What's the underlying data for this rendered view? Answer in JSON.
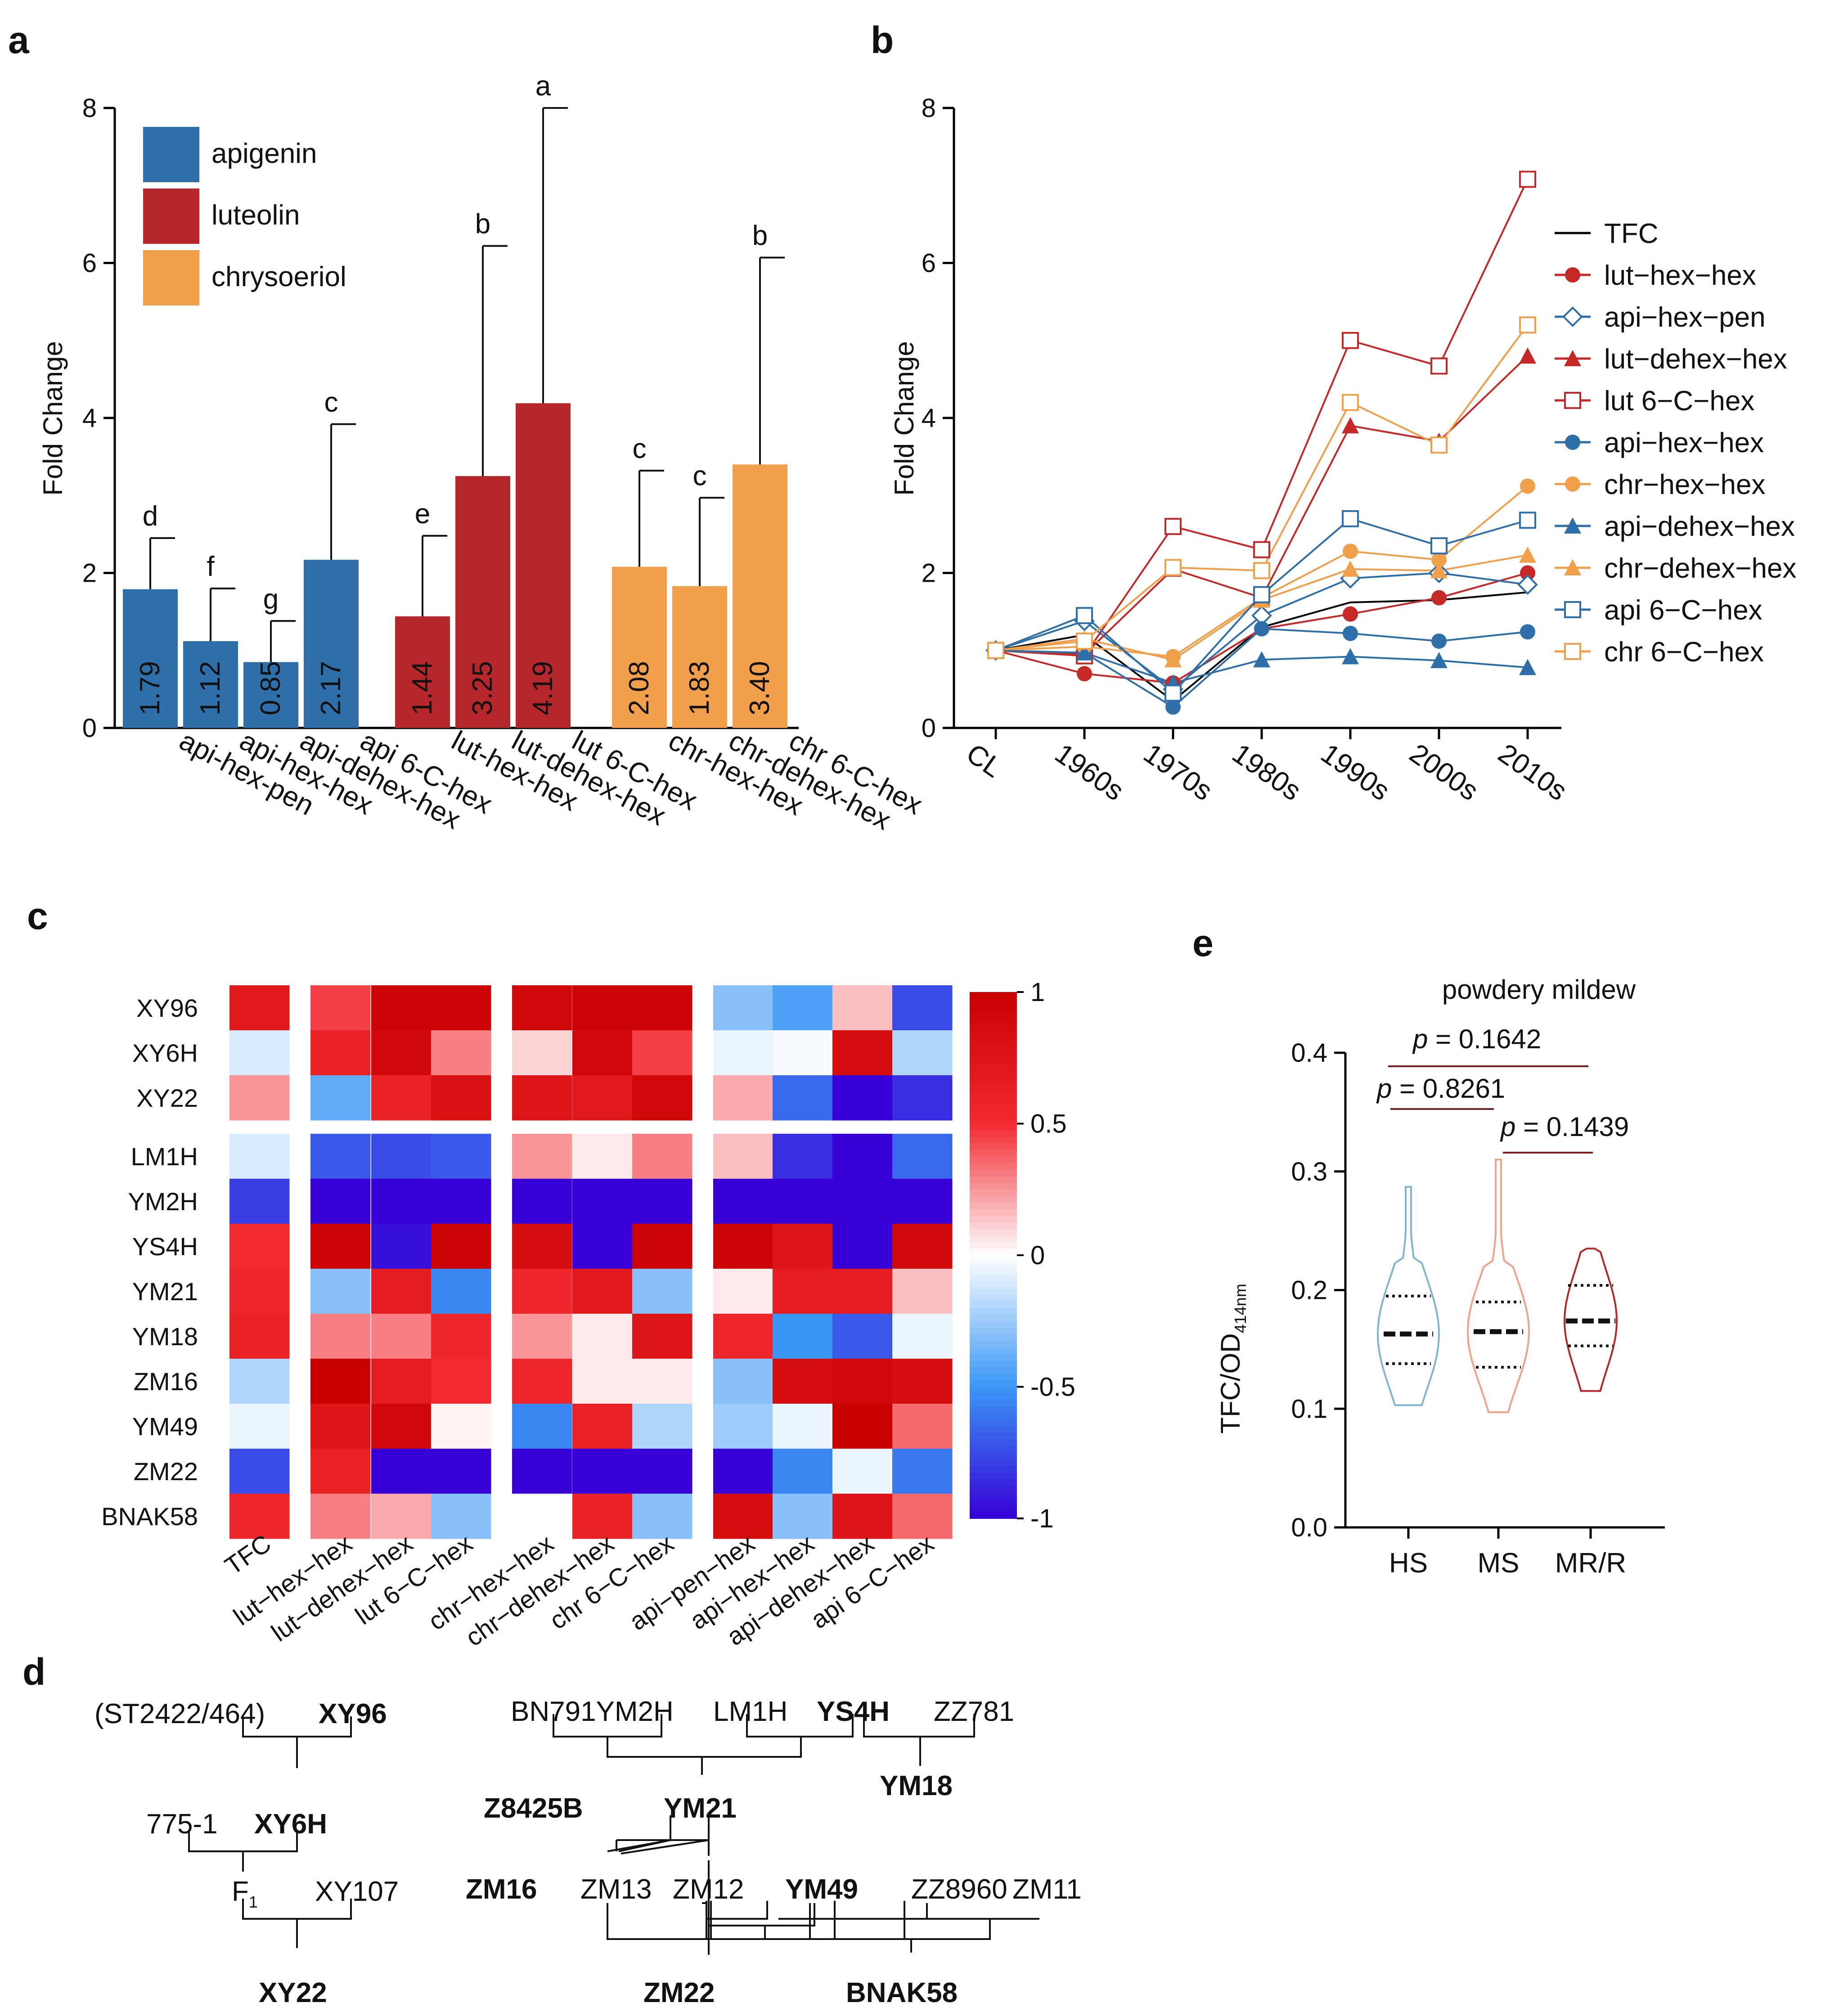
{
  "panel_labels": [
    "a",
    "b",
    "c",
    "d",
    "e"
  ],
  "chart_data": [
    {
      "id": "a",
      "type": "bar",
      "ylabel": "Fold Change",
      "ylim": [
        0,
        8
      ],
      "yticks": [
        "0",
        "2",
        "4",
        "6",
        "8"
      ],
      "legend": [
        {
          "name": "apigenin",
          "color": "#2E6FA9"
        },
        {
          "name": "luteolin",
          "color": "#B5272B"
        },
        {
          "name": "chrysoeriol",
          "color": "#F0A04A"
        }
      ],
      "bars": [
        {
          "category": "api-hex-pen",
          "value": 1.79,
          "label": "1.79",
          "err": 2.45,
          "sig": "d",
          "group": 0
        },
        {
          "category": "api-hex-hex",
          "value": 1.12,
          "label": "1.12",
          "err": 1.8,
          "sig": "f",
          "group": 0
        },
        {
          "category": "api-dehex-hex",
          "value": 0.85,
          "label": "0.85",
          "err": 1.38,
          "sig": "g",
          "group": 0
        },
        {
          "category": "api 6-C-hex",
          "value": 2.17,
          "label": "2.17",
          "err": 3.92,
          "sig": "c",
          "group": 0
        },
        {
          "category": "lut-hex-hex",
          "value": 1.44,
          "label": "1.44",
          "err": 2.48,
          "sig": "e",
          "group": 1
        },
        {
          "category": "lut-dehex-hex",
          "value": 3.25,
          "label": "3.25",
          "err": 6.22,
          "sig": "b",
          "group": 1
        },
        {
          "category": "lut 6-C-hex",
          "value": 4.19,
          "label": "4.19",
          "err": 8.0,
          "sig": "a",
          "group": 1
        },
        {
          "category": "chr-hex-hex",
          "value": 2.08,
          "label": "2.08",
          "err": 3.32,
          "sig": "c",
          "group": 2
        },
        {
          "category": "chr-dehex-hex",
          "value": 1.83,
          "label": "1.83",
          "err": 2.97,
          "sig": "c",
          "group": 2
        },
        {
          "category": "chr 6-C-hex",
          "value": 3.4,
          "label": "3.40",
          "err": 6.07,
          "sig": "b",
          "group": 2
        }
      ]
    },
    {
      "id": "b",
      "type": "line",
      "ylabel": "Fold Change",
      "ylim": [
        0,
        8
      ],
      "yticks": [
        "0",
        "2",
        "4",
        "6",
        "8"
      ],
      "categories": [
        "CL",
        "1960s",
        "1970s",
        "1980s",
        "1990s",
        "2000s",
        "2010s"
      ],
      "series": [
        {
          "name": "TFC",
          "color": "#000000",
          "marker": "none",
          "values": [
            1.0,
            1.2,
            0.35,
            1.3,
            1.62,
            1.65,
            1.75
          ]
        },
        {
          "name": "lut−hex−hex",
          "color": "#C62828",
          "marker": "circle",
          "values": [
            1.0,
            0.7,
            0.58,
            1.28,
            1.47,
            1.68,
            2.0
          ]
        },
        {
          "name": "api−hex−pen",
          "color": "#2E6FA9",
          "marker": "diamond-open",
          "values": [
            1.0,
            1.38,
            0.5,
            1.45,
            1.93,
            2.0,
            1.85
          ]
        },
        {
          "name": "lut−dehex−hex",
          "color": "#C62828",
          "marker": "triangle",
          "values": [
            1.0,
            0.95,
            2.05,
            1.68,
            3.9,
            3.7,
            4.8
          ]
        },
        {
          "name": "lut 6−C−hex",
          "color": "#C62828",
          "marker": "square-open",
          "values": [
            1.0,
            0.93,
            2.6,
            2.3,
            5.0,
            4.67,
            7.08
          ]
        },
        {
          "name": "api−hex−hex",
          "color": "#2E6FA9",
          "marker": "circle",
          "values": [
            1.0,
            0.97,
            0.27,
            1.28,
            1.22,
            1.12,
            1.24
          ]
        },
        {
          "name": "chr−hex−hex",
          "color": "#F0A04A",
          "marker": "circle",
          "values": [
            1.0,
            1.05,
            0.92,
            1.68,
            2.28,
            2.17,
            3.12
          ]
        },
        {
          "name": "api−dehex−hex",
          "color": "#2E6FA9",
          "marker": "triangle",
          "values": [
            1.0,
            0.97,
            0.58,
            0.88,
            0.92,
            0.87,
            0.78
          ]
        },
        {
          "name": "chr−dehex−hex",
          "color": "#F0A04A",
          "marker": "triangle",
          "values": [
            1.0,
            1.15,
            0.88,
            1.65,
            2.05,
            2.03,
            2.23
          ]
        },
        {
          "name": "api 6−C−hex",
          "color": "#2E6FA9",
          "marker": "square-open",
          "values": [
            1.0,
            1.45,
            0.45,
            1.72,
            2.7,
            2.35,
            2.68
          ]
        },
        {
          "name": "chr 6−C−hex",
          "color": "#F0A04A",
          "marker": "square-open",
          "values": [
            1.0,
            1.12,
            2.07,
            2.03,
            4.2,
            3.65,
            5.2
          ]
        }
      ]
    },
    {
      "id": "c",
      "type": "heatmap",
      "rows": [
        "XY96",
        "XY6H",
        "XY22",
        "LM1H",
        "YM2H",
        "YS4H",
        "YM21",
        "YM18",
        "ZM16",
        "YM49",
        "ZM22",
        "BNAK58"
      ],
      "columns": [
        "TFC",
        "lut−hex−hex",
        "lut−dehex−hex",
        "lut 6−C−hex",
        "chr−hex−hex",
        "chr−dehex−hex",
        "chr 6−C−hex",
        "api−pen−hex",
        "api−hex−hex",
        "api−dehex−hex",
        "api 6−C−hex"
      ],
      "values": [
        [
          0.7,
          0.45,
          0.95,
          0.95,
          0.9,
          0.95,
          0.95,
          -0.3,
          -0.45,
          0.15,
          -0.75
        ],
        [
          -0.1,
          0.6,
          0.9,
          0.3,
          0.1,
          0.9,
          0.45,
          -0.05,
          -0.02,
          0.85,
          -0.2
        ],
        [
          0.25,
          -0.4,
          0.6,
          0.8,
          0.75,
          0.7,
          0.9,
          0.2,
          -0.65,
          -1.0,
          -0.85
        ],
        [
          -0.1,
          -0.7,
          -0.75,
          -0.7,
          0.25,
          0.05,
          0.3,
          0.15,
          -0.85,
          -1.0,
          -0.65
        ],
        [
          -0.8,
          -1.0,
          -1.0,
          -1.0,
          -1.0,
          -1.0,
          -1.0,
          -1.0,
          -1.0,
          -1.0,
          -1.0
        ],
        [
          0.5,
          0.95,
          -0.95,
          0.95,
          0.85,
          -1.0,
          0.95,
          0.95,
          0.75,
          -1.0,
          0.9
        ],
        [
          0.55,
          -0.3,
          0.65,
          -0.55,
          0.55,
          0.7,
          -0.3,
          0.05,
          0.65,
          0.65,
          0.15
        ],
        [
          0.6,
          0.3,
          0.3,
          0.55,
          0.25,
          0.05,
          0.75,
          0.55,
          -0.5,
          -0.7,
          -0.05
        ],
        [
          -0.2,
          1.0,
          0.65,
          0.5,
          0.55,
          0.05,
          0.05,
          -0.3,
          0.85,
          0.9,
          0.85
        ],
        [
          -0.05,
          0.75,
          0.9,
          0.03,
          -0.55,
          0.6,
          -0.2,
          -0.25,
          -0.05,
          1.0,
          0.35
        ],
        [
          -0.75,
          0.6,
          -1.0,
          -1.0,
          -1.0,
          -1.0,
          -1.0,
          -1.0,
          -0.55,
          -0.05,
          -0.6
        ],
        [
          0.55,
          0.3,
          0.2,
          -0.3,
          0.0,
          0.6,
          -0.3,
          0.85,
          -0.3,
          0.75,
          0.35
        ]
      ],
      "colorbar_ticks": [
        "1",
        "0.5",
        "0",
        "-0.5",
        "-1"
      ],
      "colorbar_range": [
        -1,
        1
      ]
    },
    {
      "id": "e",
      "type": "violin",
      "title": "powdery mildew",
      "ylabel": "TFC/OD",
      "ylabel_sub": "414nm",
      "ylim": [
        0.0,
        0.4
      ],
      "yticks": [
        "0.0",
        "0.1",
        "0.2",
        "0.3",
        "0.4"
      ],
      "groups": [
        {
          "name": "HS",
          "color": "#7FB7CC",
          "min": 0.103,
          "max": 0.287,
          "q1": 0.138,
          "median": 0.163,
          "q3": 0.195
        },
        {
          "name": "MS",
          "color": "#F2A286",
          "min": 0.097,
          "max": 0.31,
          "q1": 0.135,
          "median": 0.165,
          "q3": 0.19
        },
        {
          "name": "MR/R",
          "color": "#B5272B",
          "min": 0.115,
          "max": 0.235,
          "q1": 0.153,
          "median": 0.174,
          "q3": 0.204
        }
      ],
      "pvalues": [
        {
          "label_p": "p",
          "label_rest": " = 0.1642",
          "pair": [
            0,
            2
          ]
        },
        {
          "label_p": "p",
          "label_rest": " = 0.8261",
          "pair": [
            0,
            1
          ]
        },
        {
          "label_p": "p",
          "label_rest": " = 0.1439",
          "pair": [
            1,
            2
          ]
        }
      ]
    }
  ],
  "pedigree": {
    "XY96_parent": "(ST2422/464)",
    "XY96": "XY96",
    "p775": "775-1",
    "XY6H": "XY6H",
    "F": "F",
    "F_sub": "1",
    "XY107": "XY107",
    "XY22": "XY22",
    "BN791YM2H": "BN791YM2H",
    "LM1H": "LM1H",
    "YS4H": "YS4H",
    "ZZ781": "ZZ781",
    "YM18": "YM18",
    "Z8425B": "Z8425B",
    "YM21": "YM21",
    "ZM16": "ZM16",
    "ZM13": "ZM13",
    "ZM12": "ZM12",
    "YM49": "YM49",
    "ZZ8960": "ZZ8960",
    "ZM11": "ZM11",
    "ZM22": "ZM22",
    "BNAK58": "BNAK58"
  }
}
